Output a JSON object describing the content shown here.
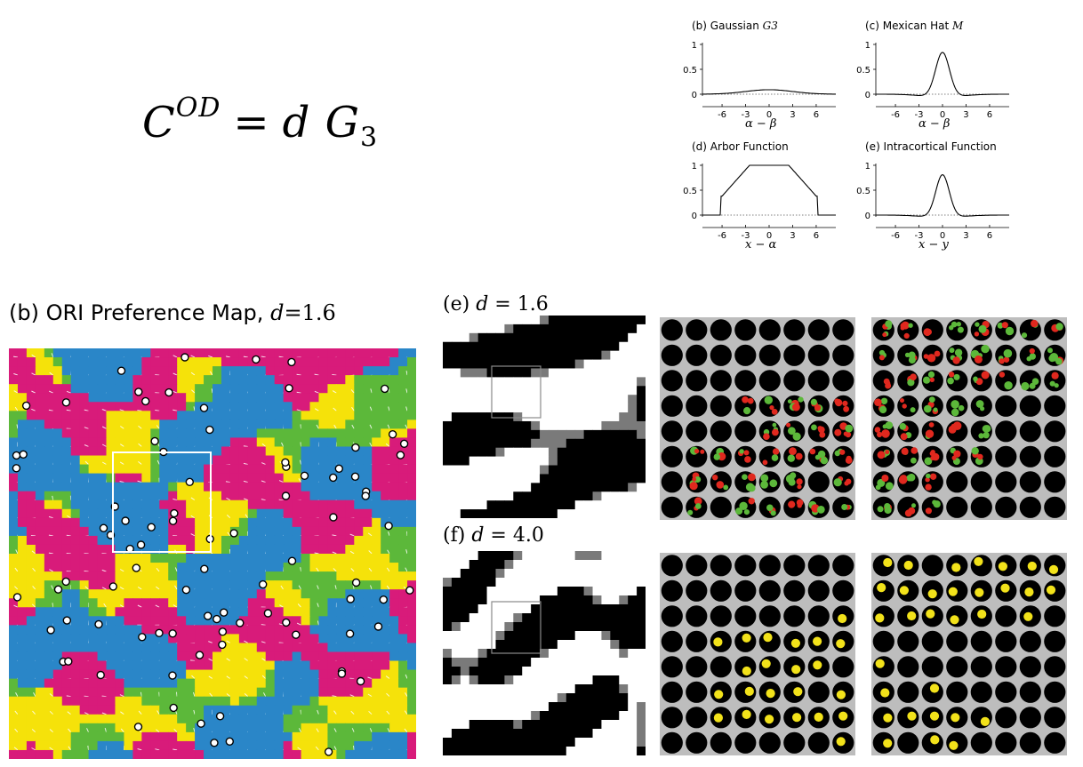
{
  "equation": {
    "lhs": "C",
    "lhs_sup": "OD",
    "op": "=",
    "rhs_d": "d",
    "rhs_G": "G",
    "rhs_sub": "3"
  },
  "plots": [
    {
      "id": "b",
      "label": "(b) Gaussian",
      "math": "G3",
      "xlabel": "α − β",
      "ytick": [
        "1",
        "0.5",
        "0"
      ],
      "xtick": [
        "-6",
        "-3",
        "0",
        "3",
        "6"
      ]
    },
    {
      "id": "c",
      "label": "(c) Mexican Hat",
      "math": "M",
      "xlabel": "α − β",
      "ytick": [
        "1",
        "0.5",
        "0"
      ],
      "xtick": [
        "-6",
        "-3",
        "0",
        "3",
        "6"
      ]
    },
    {
      "id": "d",
      "label": "(d) Arbor Function",
      "math": "",
      "xlabel": "x − α",
      "ytick": [
        "1",
        "0.5",
        "0"
      ],
      "xtick": [
        "-6",
        "-3",
        "0",
        "3",
        "6"
      ]
    },
    {
      "id": "e",
      "label": "(e) Intracortical Function",
      "math": "",
      "xlabel": "x − y",
      "ytick": [
        "1",
        "0.5",
        "0"
      ],
      "xtick": [
        "-6",
        "-3",
        "0",
        "3",
        "6"
      ]
    }
  ],
  "ori_map": {
    "label": "(b) ORI Preference Map,",
    "d_label": "d",
    "eq": "=",
    "value": "1.6"
  },
  "panel_e": {
    "label": "(e)",
    "d_label": "d",
    "eq": "=",
    "value": "1.6"
  },
  "panel_f": {
    "label": "(f)",
    "d_label": "d",
    "eq": "=",
    "value": "4.0"
  },
  "colors": {
    "magenta": "#d81b7a",
    "yellow": "#f5e20a",
    "blue": "#2a86c8",
    "green": "#5cb83a",
    "red": "#e0281e",
    "dot_yellow": "#f2e21a"
  }
}
